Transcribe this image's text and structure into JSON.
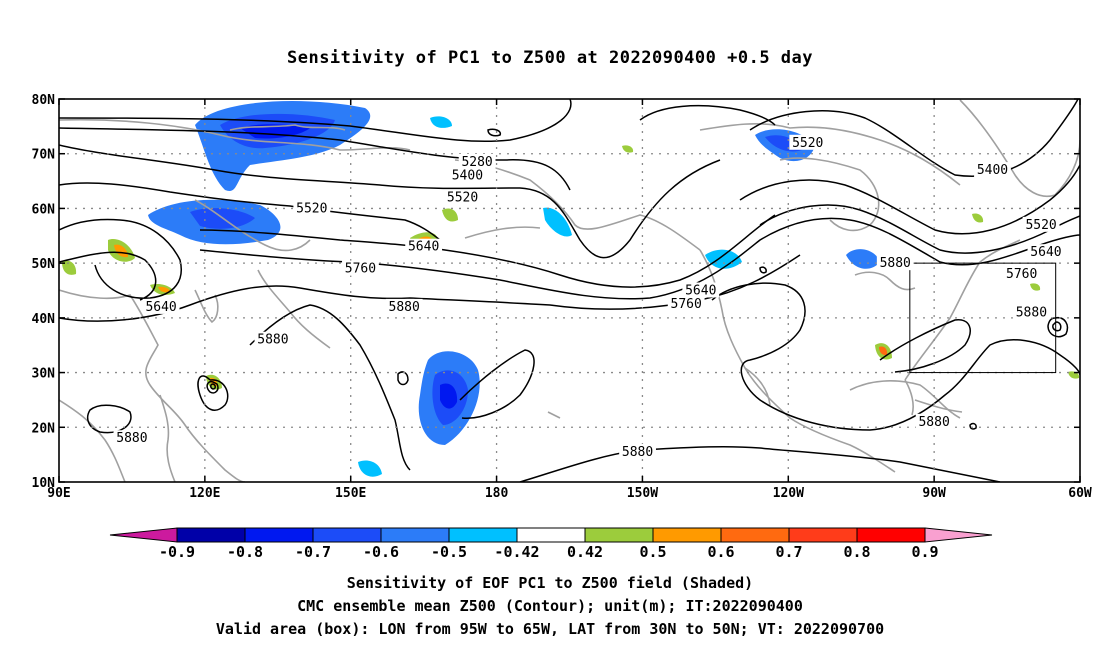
{
  "title": "Sensitivity of PC1 to Z500 at 2022090400 +0.5 day",
  "map": {
    "lon_range": [
      90,
      300
    ],
    "lat_range": [
      10,
      80
    ],
    "lon_ticks": [
      {
        "value": 90,
        "label": "90E"
      },
      {
        "value": 120,
        "label": "120E"
      },
      {
        "value": 150,
        "label": "150E"
      },
      {
        "value": 180,
        "label": "180"
      },
      {
        "value": 210,
        "label": "150W"
      },
      {
        "value": 240,
        "label": "120W"
      },
      {
        "value": 270,
        "label": "90W"
      },
      {
        "value": 300,
        "label": "60W"
      }
    ],
    "lat_ticks": [
      {
        "value": 80,
        "label": "80N"
      },
      {
        "value": 70,
        "label": "70N"
      },
      {
        "value": 60,
        "label": "60N"
      },
      {
        "value": 50,
        "label": "50N"
      },
      {
        "value": 40,
        "label": "40N"
      },
      {
        "value": 30,
        "label": "30N"
      },
      {
        "value": 20,
        "label": "20N"
      },
      {
        "value": 10,
        "label": "10N"
      }
    ],
    "grid": true,
    "valid_box": {
      "lon_min": 265,
      "lon_max": 295,
      "lat_min": 30,
      "lat_max": 50
    },
    "contour_labels": [
      {
        "text": "5280",
        "lon": 176,
        "lat": 68.5
      },
      {
        "text": "5400",
        "lon": 174,
        "lat": 66
      },
      {
        "text": "5520",
        "lon": 173,
        "lat": 62
      },
      {
        "text": "5520",
        "lon": 142,
        "lat": 60
      },
      {
        "text": "5640",
        "lon": 165,
        "lat": 53
      },
      {
        "text": "5760",
        "lon": 152,
        "lat": 49
      },
      {
        "text": "5640",
        "lon": 111,
        "lat": 42
      },
      {
        "text": "5880",
        "lon": 161,
        "lat": 42
      },
      {
        "text": "5880",
        "lon": 134,
        "lat": 36
      },
      {
        "text": "5880",
        "lon": 105,
        "lat": 18
      },
      {
        "text": "5880",
        "lon": 209,
        "lat": 15.5
      },
      {
        "text": "5640",
        "lon": 222,
        "lat": 45
      },
      {
        "text": "5760",
        "lon": 219,
        "lat": 42.5
      },
      {
        "text": "5520",
        "lon": 244,
        "lat": 72
      },
      {
        "text": "5400",
        "lon": 282,
        "lat": 67
      },
      {
        "text": "5520",
        "lon": 292,
        "lat": 57
      },
      {
        "text": "5640",
        "lon": 293,
        "lat": 52
      },
      {
        "text": "5760",
        "lon": 288,
        "lat": 48
      },
      {
        "text": "5880",
        "lon": 262,
        "lat": 50
      },
      {
        "text": "5880",
        "lon": 290,
        "lat": 41
      },
      {
        "text": "5880",
        "lon": 270,
        "lat": 21
      }
    ]
  },
  "colorbar": {
    "labels": [
      "-0.9",
      "-0.8",
      "-0.7",
      "-0.6",
      "-0.5",
      "-0.42",
      "0.42",
      "0.5",
      "0.6",
      "0.7",
      "0.8",
      "0.9"
    ],
    "colors": [
      "#cc1a9e",
      "#0000a8",
      "#0018f0",
      "#1c4cf8",
      "#2c7cf8",
      "#00c0ff",
      "#ffffff",
      "#9ccc3c",
      "#ff9a00",
      "#ff6a10",
      "#ff3c1a",
      "#ff0000",
      "#f9a0d0"
    ]
  },
  "footer": {
    "line1": "Sensitivity of EOF PC1 to Z500 field (Shaded)",
    "line2": "CMC ensemble mean Z500 (Contour); unit(m); IT:2022090400",
    "line3": "Valid area (box): LON from 95W to 65W, LAT from 30N to 50N; VT: 2022090700"
  }
}
